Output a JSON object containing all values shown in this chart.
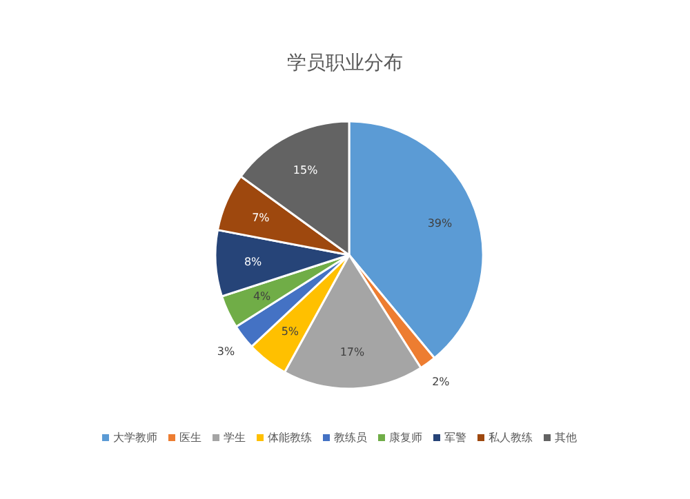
{
  "chart_data": {
    "type": "pie",
    "title": "学员职业分布",
    "categories": [
      "大学教师",
      "医生",
      "学生",
      "体能教练",
      "教练员",
      "康复师",
      "军警",
      "私人教练",
      "其他"
    ],
    "values": [
      39,
      2,
      17,
      5,
      3,
      4,
      8,
      7,
      15
    ],
    "value_labels": [
      "39%",
      "2%",
      "17%",
      "5%",
      "3%",
      "4%",
      "8%",
      "7%",
      "15%"
    ],
    "colors": [
      "#5b9bd5",
      "#ed7d31",
      "#a5a5a5",
      "#ffc000",
      "#4472c4",
      "#70ad47",
      "#264478",
      "#9e480e",
      "#636363"
    ],
    "legend": "bottom"
  }
}
